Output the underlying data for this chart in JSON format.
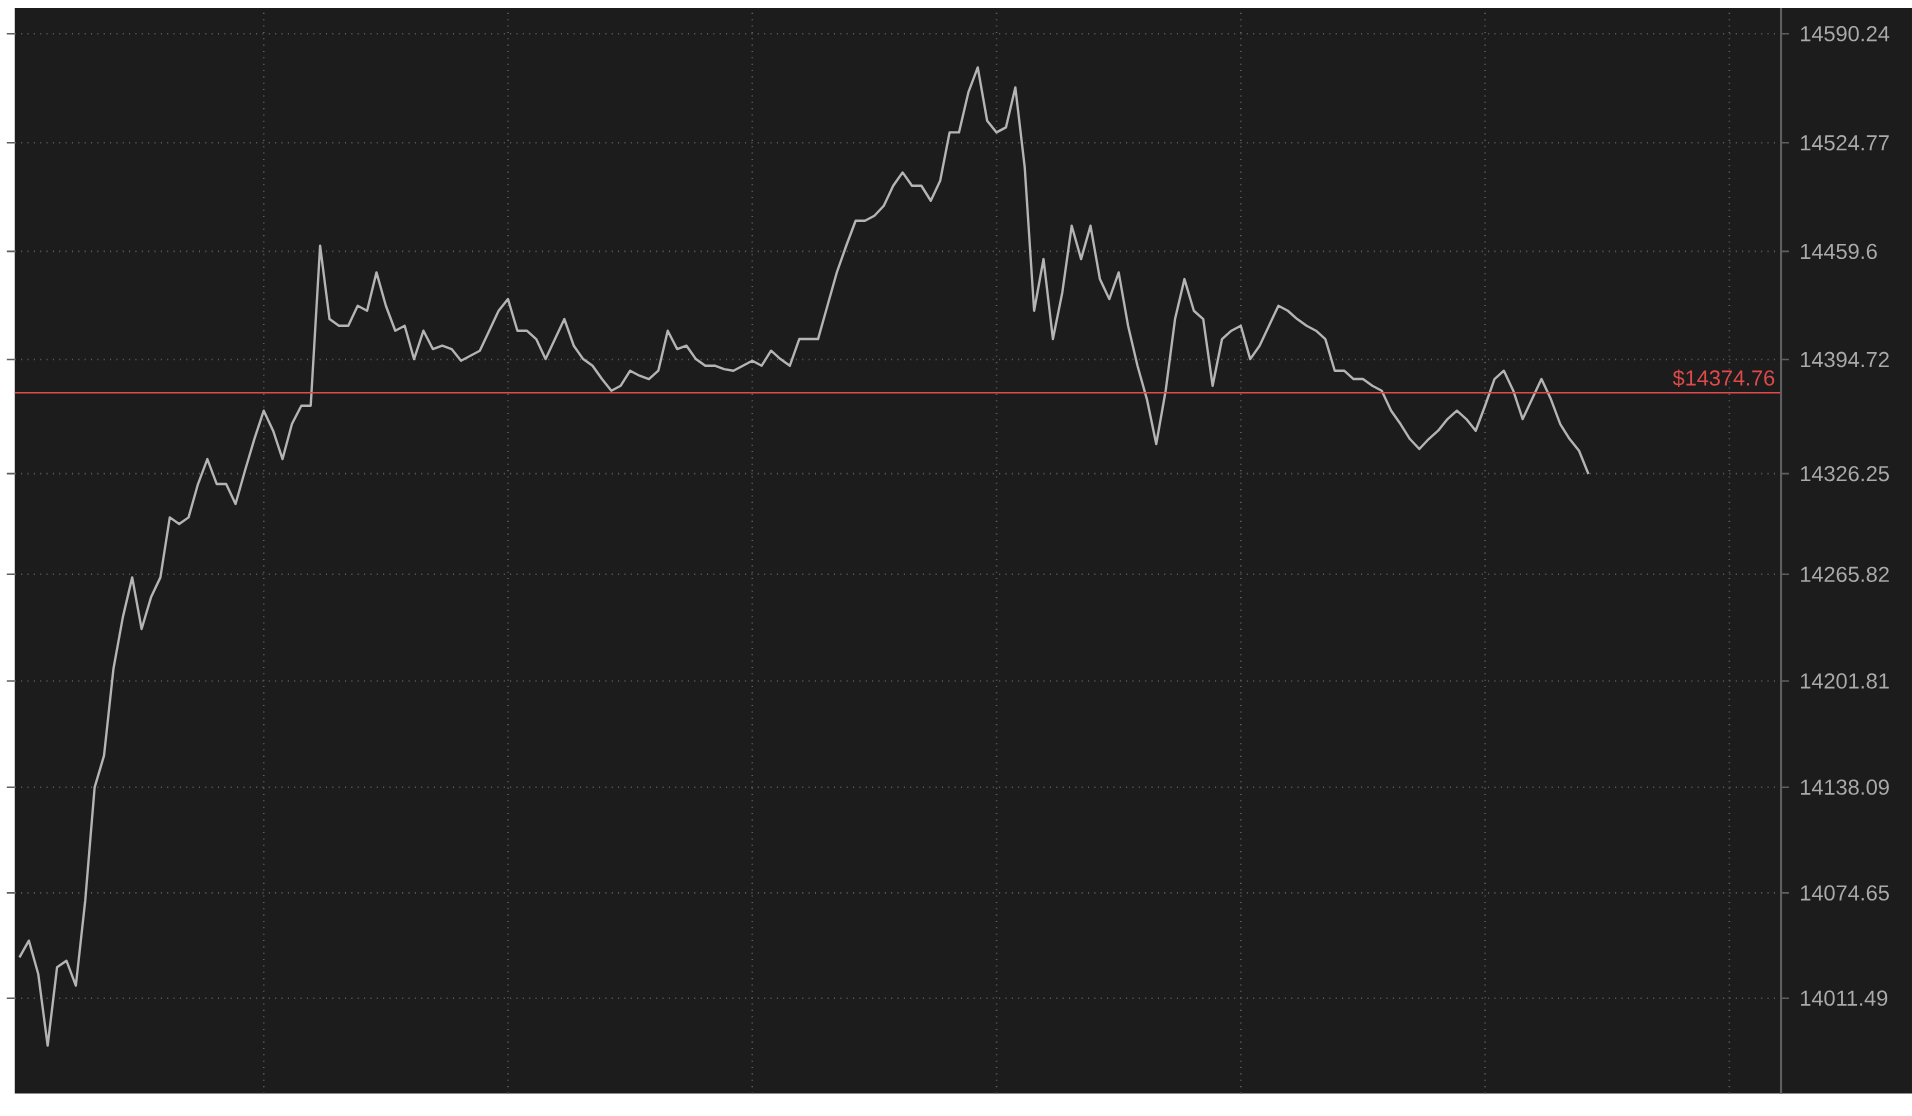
{
  "chart_data": {
    "type": "line",
    "categories": [
      null,
      null,
      null,
      null,
      null,
      null,
      null,
      null,
      null,
      null,
      null,
      null,
      null,
      null,
      null,
      null,
      null,
      null,
      null,
      null,
      null,
      null,
      null,
      null,
      null,
      null,
      null,
      null,
      null,
      null,
      null,
      null,
      null,
      null,
      null,
      null,
      null,
      null,
      null,
      null,
      null,
      null,
      null,
      null,
      null,
      null,
      null,
      null,
      null,
      null,
      null,
      null,
      null,
      null,
      null,
      null,
      null,
      null,
      null,
      null,
      null,
      null,
      null,
      null,
      null,
      null,
      null,
      null,
      null,
      null,
      null,
      null,
      null,
      null,
      null,
      null,
      null,
      null,
      null,
      null,
      null,
      null,
      null,
      null,
      null,
      null,
      null,
      null,
      null,
      null,
      null,
      null,
      null,
      null,
      null,
      null,
      null,
      null,
      null,
      null,
      null,
      null,
      null,
      null,
      null,
      null,
      null,
      null,
      null,
      null,
      null,
      null,
      null,
      null,
      null,
      null,
      null,
      null,
      null,
      null,
      null,
      null,
      null,
      null,
      null,
      null,
      null,
      null,
      null,
      null,
      null,
      null,
      null,
      null,
      null,
      null,
      null,
      null,
      null,
      null,
      null,
      null,
      null,
      null,
      null,
      null,
      null,
      null,
      null,
      null,
      null,
      null,
      null,
      null,
      null,
      null,
      null,
      null,
      null,
      null,
      null,
      null,
      null,
      null,
      null,
      null,
      null,
      null,
      null,
      null,
      null,
      null,
      null,
      null,
      null,
      null,
      null,
      null,
      null,
      null,
      null,
      null,
      null,
      null,
      null,
      null,
      null,
      null
    ],
    "series": [
      {
        "color": "#b4b4b4",
        "values": [
          14036,
          14046,
          14026,
          13983,
          14030,
          14034,
          14019,
          14070,
          14138,
          14157,
          14209,
          14240,
          14264,
          14233,
          14252,
          14264,
          14300,
          14296,
          14300,
          14320,
          14335,
          14320,
          14320,
          14308,
          14328,
          14347,
          14364,
          14352,
          14335,
          14356,
          14367,
          14367,
          14463,
          14419,
          14415,
          14415,
          14427,
          14424,
          14447,
          14427,
          14412,
          14415,
          14395,
          14412,
          14401,
          14403,
          14401,
          14394,
          14397,
          14400,
          14412,
          14424,
          14431,
          14412,
          14412,
          14407,
          14395,
          14407,
          14419,
          14403,
          14395,
          14391,
          14383,
          14376,
          14379,
          14388,
          14385,
          14383,
          14388,
          14412,
          14401,
          14403,
          14395,
          14391,
          14391,
          14389,
          14388,
          14391,
          14394,
          14391,
          14400,
          14395,
          14391,
          14407,
          14407,
          14407,
          14427,
          14447,
          14463,
          14478,
          14478,
          14481,
          14487,
          14499,
          14507,
          14499,
          14499,
          14490,
          14502,
          14531,
          14531,
          14555,
          14570,
          14538,
          14531,
          14534,
          14558,
          14510,
          14424,
          14455,
          14407,
          14435,
          14475,
          14455,
          14475,
          14443,
          14431,
          14447,
          14415,
          14391,
          14371,
          14344,
          14376,
          14419,
          14443,
          14424,
          14419,
          14379,
          14407,
          14412,
          14415,
          14395,
          14403,
          14415,
          14427,
          14424,
          14419,
          14415,
          14412,
          14407,
          14388,
          14388,
          14383,
          14383,
          14379,
          14376,
          14364,
          14356,
          14347,
          14341,
          14347,
          14352,
          14359,
          14364,
          14359,
          14352,
          14367,
          14383,
          14388,
          14376,
          14359,
          14371,
          14383,
          14371,
          14356,
          14347,
          14340,
          14326,
          null,
          null,
          null,
          null,
          null,
          null,
          null,
          null,
          null,
          null,
          null,
          null,
          null,
          null,
          null,
          null,
          null,
          null,
          null,
          null
        ]
      }
    ],
    "ylim": [
      13954.3,
      14605.7
    ],
    "yticks": [
      14011.49,
      14074.65,
      14138.09,
      14201.81,
      14265.82,
      14326.25,
      14394.72,
      14459.6,
      14524.77,
      14590.24
    ],
    "grid": true,
    "marker": "none",
    "line_style": "solid",
    "ref_lines": [
      {
        "axis": "y",
        "value": 14374.76,
        "label": "$14374.76",
        "color": "#e04a4a"
      }
    ]
  }
}
